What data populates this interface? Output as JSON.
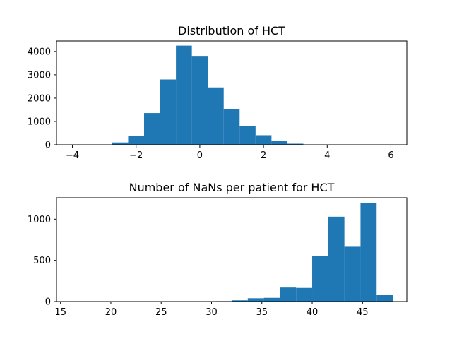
{
  "chart_data": [
    {
      "type": "bar",
      "title": "Distribution of HCT",
      "xlabel": "",
      "ylabel": "",
      "xlim": [
        -4.5,
        6.5
      ],
      "ylim": [
        0,
        4450
      ],
      "xticks": [
        -4,
        -2,
        0,
        2,
        4,
        6
      ],
      "xtick_labels": [
        "−4",
        "−2",
        "0",
        "2",
        "4",
        "6"
      ],
      "yticks": [
        0,
        1000,
        2000,
        3000,
        4000
      ],
      "ytick_labels": [
        "0",
        "1000",
        "2000",
        "3000",
        "4000"
      ],
      "bin_edges": [
        -4.0,
        -3.5,
        -3.0,
        -2.75,
        -2.25,
        -1.75,
        -1.25,
        -0.75,
        -0.25,
        0.25,
        0.75,
        1.25,
        1.75,
        2.25,
        2.75,
        3.25,
        3.75,
        4.25,
        6.25
      ],
      "values": [
        4,
        8,
        15,
        100,
        370,
        1360,
        2800,
        4250,
        3810,
        2460,
        1530,
        800,
        410,
        160,
        45,
        12,
        5,
        2
      ],
      "color": "#1f77b4",
      "grid": false,
      "legend": "none"
    },
    {
      "type": "bar",
      "title": "Number of NaNs per patient for HCT",
      "xlabel": "",
      "ylabel": "",
      "xlim": [
        14.6,
        49.4
      ],
      "ylim": [
        0,
        1260
      ],
      "xticks": [
        15,
        20,
        25,
        30,
        35,
        40,
        45
      ],
      "xtick_labels": [
        "15",
        "20",
        "25",
        "30",
        "35",
        "40",
        "45"
      ],
      "yticks": [
        0,
        500,
        1000
      ],
      "ytick_labels": [
        "0",
        "500",
        "1000"
      ],
      "bin_edges": [
        16.0,
        17.6,
        19.2,
        20.8,
        22.4,
        24.0,
        25.6,
        27.2,
        28.8,
        30.4,
        32.0,
        33.6,
        35.2,
        36.8,
        38.4,
        40.0,
        41.6,
        43.2,
        44.8,
        46.4,
        48.0
      ],
      "values": [
        0,
        1,
        0,
        0,
        0,
        0,
        0,
        0,
        2,
        5,
        15,
        40,
        45,
        170,
        165,
        555,
        1030,
        665,
        1200,
        80
      ],
      "color": "#1f77b4",
      "grid": false,
      "legend": "none"
    }
  ]
}
